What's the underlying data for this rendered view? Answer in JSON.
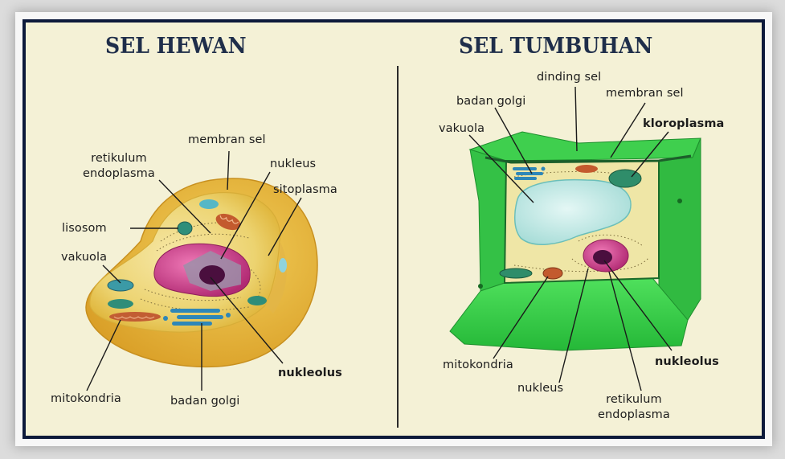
{
  "figure": {
    "left_title": "SEL HEWAN",
    "right_title": "SEL TUMBUHAN"
  },
  "animal_cell": {
    "labels": {
      "membran_sel": "membran sel",
      "retikulum_endoplasma": "retikulum\nendoplasma",
      "nukleus": "nukleus",
      "sitoplasma": "sitoplasma",
      "lisosom": "lisosom",
      "vakuola": "vakuola",
      "nukleolus": "nukleolus",
      "mitokondria": "mitokondria",
      "badan_golgi": "badan golgi"
    }
  },
  "plant_cell": {
    "labels": {
      "dinding_sel": "dinding sel",
      "badan_golgi": "badan golgi",
      "membran_sel": "membran sel",
      "vakuola": "vakuola",
      "kloroplasma": "kloroplasma",
      "mitokondria": "mitokondria",
      "nukleolus": "nukleolus",
      "nukleus": "nukleus",
      "retikulum_endoplasma": "retikulum\nendoplasma"
    }
  },
  "colors": {
    "background": "#f4f1d6",
    "frame": "#0d1a3b",
    "animal_cytoplasm": "#e9c94a",
    "plant_wall": "#39d24a",
    "vacuole": "#c7ecea",
    "nucleus": "#cf3f8a"
  }
}
